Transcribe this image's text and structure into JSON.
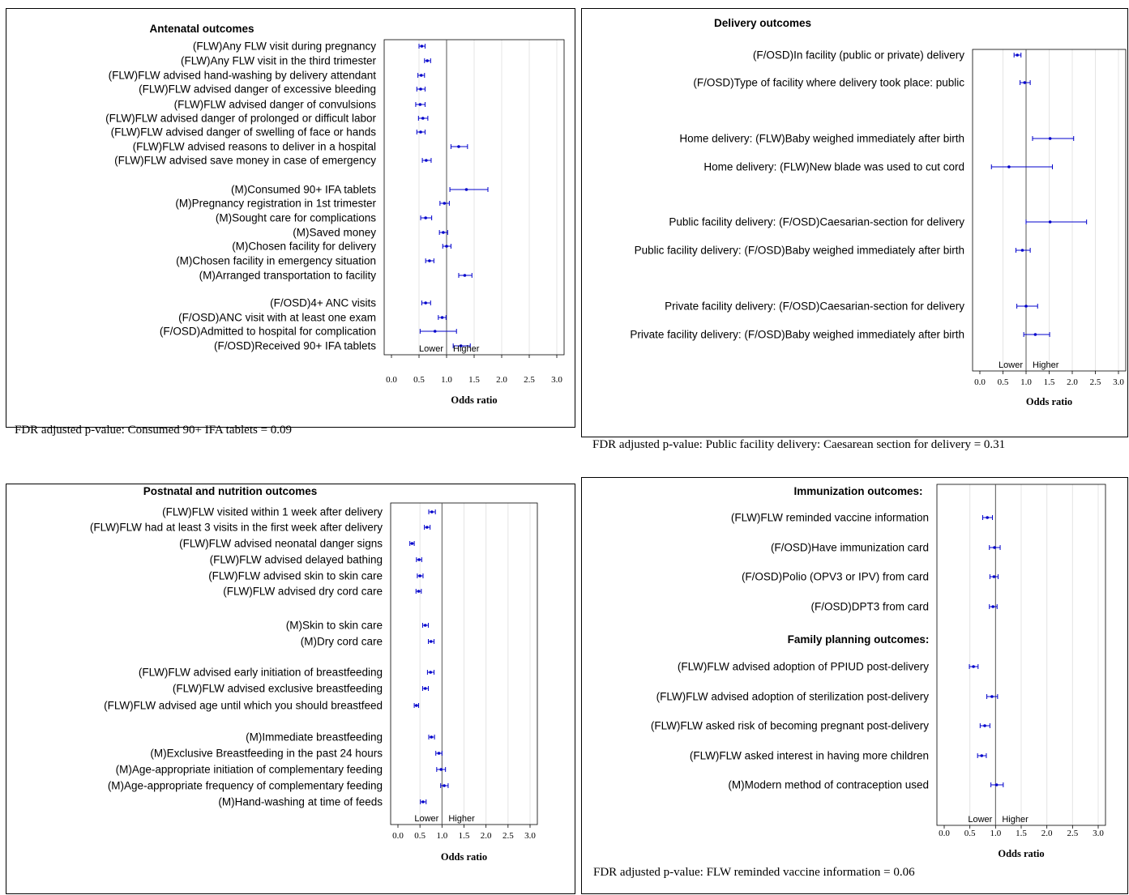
{
  "chart_data": [
    {
      "type": "forest",
      "title": "Antenatal outcomes",
      "xlabel": "Odds ratio",
      "xlim": [
        0.0,
        3.0
      ],
      "xticks": [
        "0.0",
        "0.5",
        "1.0",
        "1.5",
        "2.0",
        "2.5",
        "3.0"
      ],
      "reference_line": 1.0,
      "direction_labels": [
        "Lower",
        "Higher"
      ],
      "grid": true,
      "note": "FDR adjusted p-value: Consumed 90+ IFA tablets = 0.09",
      "groups": [
        {
          "heading": "",
          "rows": [
            {
              "label": "(FLW)Any FLW visit during pregnancy",
              "or": 0.55,
              "lo": 0.5,
              "hi": 0.61
            },
            {
              "label": "(FLW)Any FLW visit in the third trimester",
              "or": 0.65,
              "lo": 0.6,
              "hi": 0.71
            },
            {
              "label": "(FLW)FLW advised hand-washing by delivery attendant",
              "or": 0.54,
              "lo": 0.48,
              "hi": 0.6
            },
            {
              "label": "(FLW)FLW advised danger of excessive bleeding",
              "or": 0.53,
              "lo": 0.46,
              "hi": 0.61
            },
            {
              "label": "(FLW)FLW advised danger of convulsions",
              "or": 0.52,
              "lo": 0.44,
              "hi": 0.61
            },
            {
              "label": "(FLW)FLW advised danger of prolonged or difficult labor",
              "or": 0.57,
              "lo": 0.49,
              "hi": 0.66
            },
            {
              "label": "(FLW)FLW advised danger of swelling of face or hands",
              "or": 0.53,
              "lo": 0.46,
              "hi": 0.61
            },
            {
              "label": "(FLW)FLW advised reasons to deliver in a hospital",
              "or": 1.22,
              "lo": 1.08,
              "hi": 1.38
            },
            {
              "label": "(FLW)FLW advised save money in case of emergency",
              "or": 0.63,
              "lo": 0.56,
              "hi": 0.72
            }
          ]
        },
        {
          "heading": "",
          "rows": [
            {
              "label": "(M)Consumed 90+ IFA tablets",
              "or": 1.36,
              "lo": 1.06,
              "hi": 1.75
            },
            {
              "label": "(M)Pregnancy registration in 1st trimester",
              "or": 0.96,
              "lo": 0.88,
              "hi": 1.05
            },
            {
              "label": "(M)Sought care for complications",
              "or": 0.62,
              "lo": 0.53,
              "hi": 0.73
            },
            {
              "label": "(M)Saved money",
              "or": 0.94,
              "lo": 0.87,
              "hi": 1.02
            },
            {
              "label": "(M)Chosen facility for delivery",
              "or": 1.0,
              "lo": 0.93,
              "hi": 1.08
            },
            {
              "label": "(M)Chosen facility in emergency situation",
              "or": 0.69,
              "lo": 0.62,
              "hi": 0.77
            },
            {
              "label": "(M)Arranged transportation to facility",
              "or": 1.33,
              "lo": 1.22,
              "hi": 1.46
            }
          ]
        },
        {
          "heading": "",
          "rows": [
            {
              "label": "(F/OSD)4+ ANC visits",
              "or": 0.62,
              "lo": 0.55,
              "hi": 0.71
            },
            {
              "label": "(F/OSD)ANC visit with at least one exam",
              "or": 0.92,
              "lo": 0.85,
              "hi": 0.99
            },
            {
              "label": "(F/OSD)Admitted to hospital for complication",
              "or": 0.79,
              "lo": 0.52,
              "hi": 1.18
            },
            {
              "label": "(F/OSD)Received 90+ IFA tablets",
              "or": 1.26,
              "lo": 1.12,
              "hi": 1.43
            }
          ]
        }
      ]
    },
    {
      "type": "forest",
      "title": "Delivery outcomes",
      "xlabel": "Odds ratio",
      "xlim": [
        0.0,
        3.0
      ],
      "xticks": [
        "0.0",
        "0.5",
        "1.0",
        "1.5",
        "2.0",
        "2.5",
        "3.0"
      ],
      "reference_line": 1.0,
      "direction_labels": [
        "Lower",
        "Higher"
      ],
      "grid": true,
      "note": "FDR adjusted p-value: Public facility delivery: Caesarean section for delivery = 0.31",
      "groups": [
        {
          "heading": "",
          "rows": [
            {
              "label": "(F/OSD)In facility (public or private) delivery",
              "or": 0.81,
              "lo": 0.74,
              "hi": 0.89
            },
            {
              "label": "(F/OSD)Type of facility where delivery took place: public",
              "or": 0.97,
              "lo": 0.87,
              "hi": 1.09
            }
          ]
        },
        {
          "heading": "",
          "rows": [
            {
              "label": "Home delivery: (FLW)Baby weighed immediately after birth",
              "or": 1.52,
              "lo": 1.14,
              "hi": 2.03
            },
            {
              "label": "Home delivery: (FLW)New blade was used to cut cord",
              "or": 0.63,
              "lo": 0.25,
              "hi": 1.57
            }
          ]
        },
        {
          "heading": "",
          "rows": [
            {
              "label": "Public facility delivery: (F/OSD)Caesarian-section for delivery",
              "or": 1.52,
              "lo": 1.0,
              "hi": 2.31
            },
            {
              "label": "Public facility delivery: (F/OSD)Baby weighed immediately after birth",
              "or": 0.92,
              "lo": 0.78,
              "hi": 1.09
            }
          ]
        },
        {
          "heading": "",
          "rows": [
            {
              "label": "Private facility delivery: (F/OSD)Caesarian-section for delivery",
              "or": 1.0,
              "lo": 0.8,
              "hi": 1.25
            },
            {
              "label": "Private facility delivery: (F/OSD)Baby weighed immediately after birth",
              "or": 1.2,
              "lo": 0.95,
              "hi": 1.51
            }
          ]
        }
      ]
    },
    {
      "type": "forest",
      "title": "Postnatal and nutrition outcomes",
      "xlabel": "Odds ratio",
      "xlim": [
        0.0,
        3.0
      ],
      "xticks": [
        "0.0",
        "0.5",
        "1.0",
        "1.5",
        "2.0",
        "2.5",
        "3.0"
      ],
      "reference_line": 1.0,
      "direction_labels": [
        "Lower",
        "Higher"
      ],
      "grid": true,
      "note": "",
      "groups": [
        {
          "heading": "",
          "rows": [
            {
              "label": "(FLW)FLW visited within 1 week after delivery",
              "or": 0.77,
              "lo": 0.7,
              "hi": 0.85
            },
            {
              "label": "(FLW)FLW had at least 3 visits in the first week after delivery",
              "or": 0.66,
              "lo": 0.6,
              "hi": 0.73
            },
            {
              "label": "(FLW)FLW advised neonatal danger signs",
              "or": 0.32,
              "lo": 0.27,
              "hi": 0.37
            },
            {
              "label": "(FLW)FLW advised delayed bathing",
              "or": 0.48,
              "lo": 0.42,
              "hi": 0.54
            },
            {
              "label": "(FLW)FLW advised skin to skin care",
              "or": 0.5,
              "lo": 0.44,
              "hi": 0.57
            },
            {
              "label": "(FLW)FLW advised dry cord care",
              "or": 0.47,
              "lo": 0.41,
              "hi": 0.53
            }
          ]
        },
        {
          "heading": "",
          "rows": [
            {
              "label": "(M)Skin to skin care",
              "or": 0.62,
              "lo": 0.56,
              "hi": 0.69
            },
            {
              "label": "(M)Dry cord care",
              "or": 0.75,
              "lo": 0.69,
              "hi": 0.82
            }
          ]
        },
        {
          "heading": "",
          "rows": [
            {
              "label": "(FLW)FLW advised early initiation of breastfeeding",
              "or": 0.74,
              "lo": 0.67,
              "hi": 0.82
            },
            {
              "label": "(FLW)FLW advised exclusive breastfeeding",
              "or": 0.62,
              "lo": 0.56,
              "hi": 0.69
            },
            {
              "label": "(FLW)FLW advised age until which you should breastfeed",
              "or": 0.42,
              "lo": 0.37,
              "hi": 0.47
            }
          ]
        },
        {
          "heading": "",
          "rows": [
            {
              "label": "(M)Immediate breastfeeding",
              "or": 0.76,
              "lo": 0.7,
              "hi": 0.83
            },
            {
              "label": "(M)Exclusive Breastfeeding in the past 24 hours",
              "or": 0.93,
              "lo": 0.86,
              "hi": 1.0
            },
            {
              "label": "(M)Age-appropriate initiation of complementary feeding",
              "or": 0.98,
              "lo": 0.88,
              "hi": 1.08
            },
            {
              "label": "(M)Age-appropriate frequency of complementary feeding",
              "or": 1.05,
              "lo": 0.97,
              "hi": 1.14
            },
            {
              "label": "(M)Hand-washing at time of feeds",
              "or": 0.57,
              "lo": 0.51,
              "hi": 0.64
            }
          ]
        }
      ]
    },
    {
      "type": "forest",
      "title": "",
      "xlabel": "Odds ratio",
      "xlim": [
        0.0,
        3.0
      ],
      "xticks": [
        "0.0",
        "0.5",
        "1.0",
        "1.5",
        "2.0",
        "2.5",
        "3.0"
      ],
      "reference_line": 1.0,
      "direction_labels": [
        "Lower",
        "Higher"
      ],
      "grid": true,
      "note": "FDR adjusted p-value: FLW reminded vaccine information = 0.06",
      "groups": [
        {
          "heading": "Immunization outcomes:",
          "rows": [
            {
              "label": "(FLW)FLW reminded vaccine information",
              "or": 0.84,
              "lo": 0.75,
              "hi": 0.94
            },
            {
              "label": "(F/OSD)Have immunization card",
              "or": 0.98,
              "lo": 0.88,
              "hi": 1.09
            },
            {
              "label": "(F/OSD)Polio (OPV3 or IPV) from card",
              "or": 0.97,
              "lo": 0.89,
              "hi": 1.05
            },
            {
              "label": "(F/OSD)DPT3 from card",
              "or": 0.95,
              "lo": 0.88,
              "hi": 1.03
            }
          ]
        },
        {
          "heading": "Family planning outcomes:",
          "rows": [
            {
              "label": "(FLW)FLW advised adoption of PPIUD post-delivery",
              "or": 0.57,
              "lo": 0.49,
              "hi": 0.66
            },
            {
              "label": "(FLW)FLW advised adoption of sterilization post-delivery",
              "or": 0.93,
              "lo": 0.83,
              "hi": 1.04
            },
            {
              "label": "(FLW)FLW asked risk of becoming pregnant post-delivery",
              "or": 0.79,
              "lo": 0.7,
              "hi": 0.89
            },
            {
              "label": "(FLW)FLW asked interest in having more children",
              "or": 0.73,
              "lo": 0.65,
              "hi": 0.82
            },
            {
              "label": "(M)Modern method of contraception used",
              "or": 1.02,
              "lo": 0.91,
              "hi": 1.15
            }
          ]
        }
      ]
    }
  ],
  "colors": {
    "estimate": "#0000cc",
    "axis": "#000000",
    "grid": "#e4e4e4",
    "reference": "#555555"
  }
}
